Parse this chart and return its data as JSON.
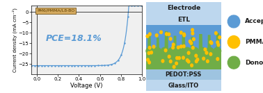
{
  "jv_label": "PM6/PMMA/L8-BO",
  "pce_text": "PCE=18.1%",
  "xlabel": "Voltage (V)",
  "ylabel": "Current density (mA cm⁻²)",
  "xlim": [
    -0.05,
    1.0
  ],
  "ylim": [
    -30,
    3
  ],
  "jsc": -25.8,
  "voc": 0.87,
  "legend_items": [
    {
      "label": "Acceptor",
      "color": "#5b9bd5"
    },
    {
      "label": "PMMA",
      "color": "#ffc000"
    },
    {
      "label": "Donor",
      "color": "#70ad47"
    }
  ],
  "electrode_color": "#bdd7ee",
  "etl_color": "#bdd7ee",
  "pedot_color": "#bdd7ee",
  "glass_color": "#bdd7ee",
  "donor_color": "#70ad47",
  "acceptor_color": "#5b9bd5",
  "pmma_color": "#ffc000",
  "plot_bg": "#f0f0f0",
  "line_color": "#5b9bd5",
  "pce_color": "#5b9bd5",
  "label_box_color": "#d4aa60",
  "label_text_color": "#5c3d00"
}
